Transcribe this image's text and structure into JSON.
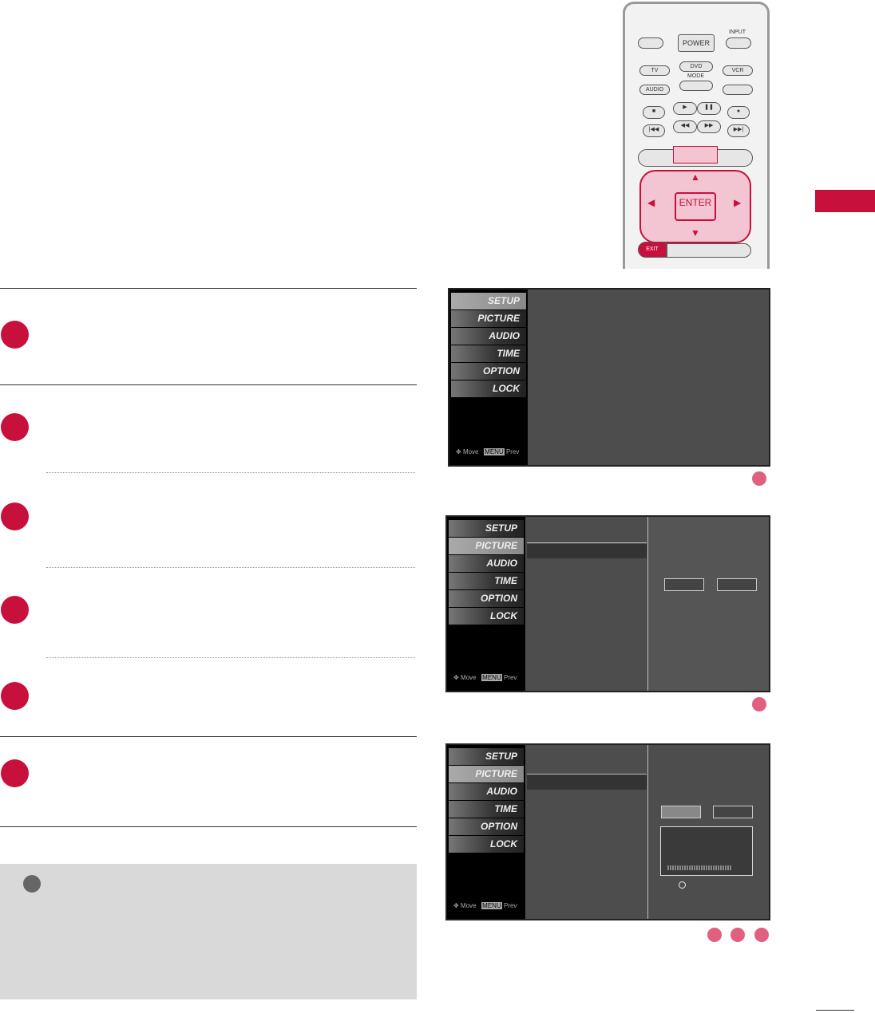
{
  "remote": {
    "power": "POWER",
    "input": "INPUT",
    "tv": "TV",
    "dvd": "DVD",
    "vcr": "VCR",
    "mode": "MODE",
    "audio": "AUDIO",
    "enter": "ENTER",
    "exit": "EXIT"
  },
  "menu": {
    "items": [
      "SETUP",
      "PICTURE",
      "AUDIO",
      "TIME",
      "OPTION",
      "LOCK"
    ],
    "move": "Move",
    "menu_key": "MENU",
    "prev": "Prev"
  },
  "colors": {
    "accent": "#c8103c",
    "step_marker": "#e06080"
  }
}
